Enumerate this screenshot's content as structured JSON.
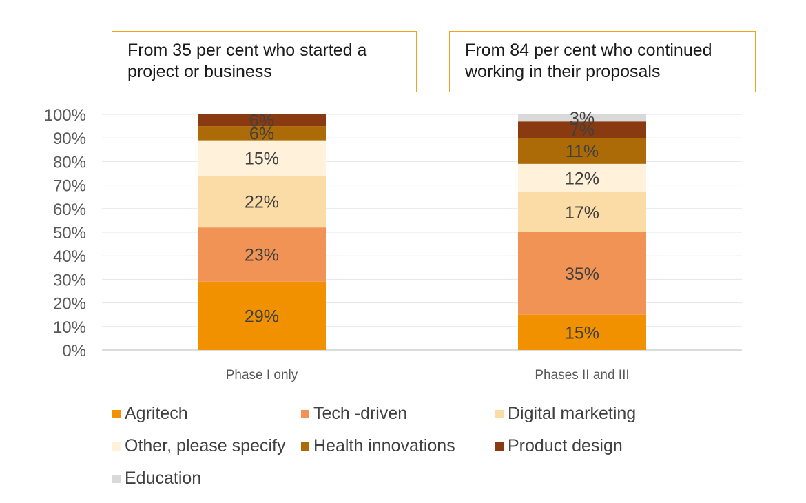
{
  "callouts": {
    "left": "From 35 per cent who started a project or business",
    "right": "From 84 per cent who continued working in their proposals"
  },
  "chart_data": {
    "type": "bar",
    "stacked": true,
    "normalized": true,
    "categories": [
      "Phase I only",
      "Phases II and III"
    ],
    "series": [
      {
        "name": "Agritech",
        "color": "#f29100",
        "values": [
          29,
          15
        ]
      },
      {
        "name": "Tech -driven",
        "color": "#f19355",
        "values": [
          23,
          35
        ]
      },
      {
        "name": "Digital marketing",
        "color": "#fcdca6",
        "values": [
          22,
          17
        ]
      },
      {
        "name": "Other, please specify",
        "color": "#fff1da",
        "values": [
          15,
          12
        ]
      },
      {
        "name": "Health innovations",
        "color": "#ad6b08",
        "values": [
          6,
          11
        ]
      },
      {
        "name": "Product design",
        "color": "#8a3a10",
        "values": [
          6,
          7
        ]
      },
      {
        "name": "Education",
        "color": "#d9d9d9",
        "values": [
          0,
          3
        ]
      }
    ],
    "data_labels": [
      [
        "29%",
        "23%",
        "22%",
        "15%",
        "6%",
        "6%",
        ""
      ],
      [
        "15%",
        "35%",
        "17%",
        "12%",
        "11%",
        "7%",
        "3%"
      ]
    ],
    "yticks": [
      "0%",
      "10%",
      "20%",
      "30%",
      "40%",
      "50%",
      "60%",
      "70%",
      "80%",
      "90%",
      "100%"
    ],
    "ylim": [
      0,
      100
    ],
    "legend_position": "bottom",
    "grid": true
  }
}
